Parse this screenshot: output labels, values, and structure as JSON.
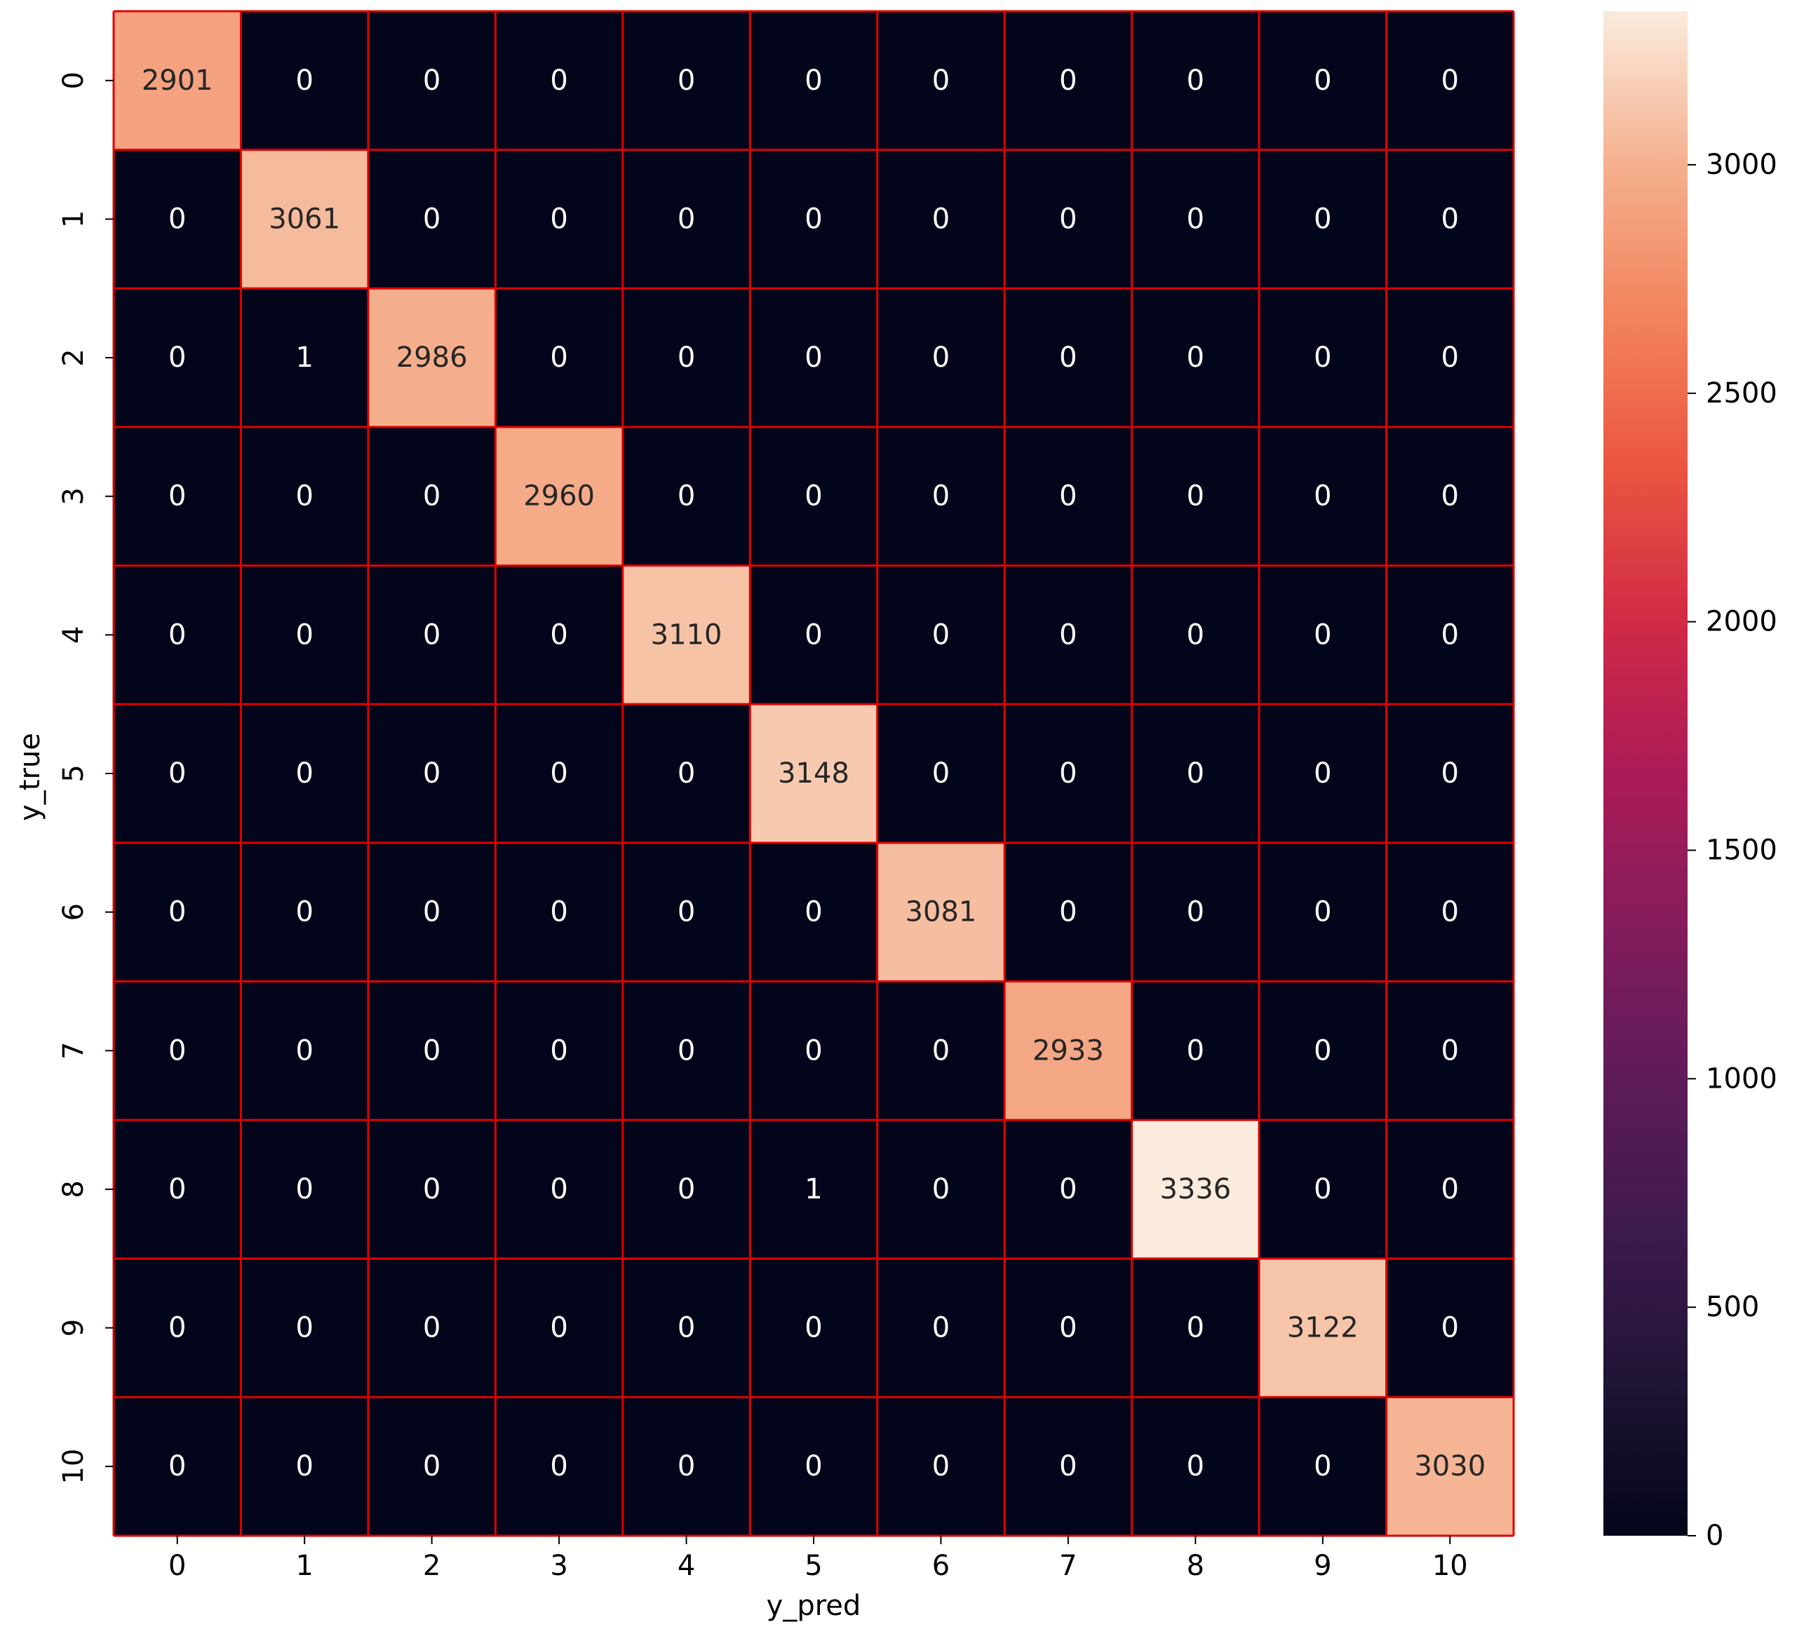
{
  "chart_data": {
    "type": "heatmap",
    "xlabel": "y_pred",
    "ylabel": "y_true",
    "x_categories": [
      "0",
      "1",
      "2",
      "3",
      "4",
      "5",
      "6",
      "7",
      "8",
      "9",
      "10"
    ],
    "y_categories": [
      "0",
      "1",
      "2",
      "3",
      "4",
      "5",
      "6",
      "7",
      "8",
      "9",
      "10"
    ],
    "matrix": [
      [
        2901,
        0,
        0,
        0,
        0,
        0,
        0,
        0,
        0,
        0,
        0
      ],
      [
        0,
        3061,
        0,
        0,
        0,
        0,
        0,
        0,
        0,
        0,
        0
      ],
      [
        0,
        1,
        2986,
        0,
        0,
        0,
        0,
        0,
        0,
        0,
        0
      ],
      [
        0,
        0,
        0,
        2960,
        0,
        0,
        0,
        0,
        0,
        0,
        0
      ],
      [
        0,
        0,
        0,
        0,
        3110,
        0,
        0,
        0,
        0,
        0,
        0
      ],
      [
        0,
        0,
        0,
        0,
        0,
        3148,
        0,
        0,
        0,
        0,
        0
      ],
      [
        0,
        0,
        0,
        0,
        0,
        0,
        3081,
        0,
        0,
        0,
        0
      ],
      [
        0,
        0,
        0,
        0,
        0,
        0,
        0,
        2933,
        0,
        0,
        0
      ],
      [
        0,
        0,
        0,
        0,
        0,
        1,
        0,
        0,
        3336,
        0,
        0
      ],
      [
        0,
        0,
        0,
        0,
        0,
        0,
        0,
        0,
        0,
        3122,
        0
      ],
      [
        0,
        0,
        0,
        0,
        0,
        0,
        0,
        0,
        0,
        0,
        3030
      ]
    ],
    "colorbar": {
      "range": [
        0,
        3336
      ],
      "ticks": [
        0,
        500,
        1000,
        1500,
        2000,
        2500,
        3000
      ],
      "colormap": "rocket"
    },
    "gridline_color": "#e00000",
    "legend": "colorbar-right"
  }
}
